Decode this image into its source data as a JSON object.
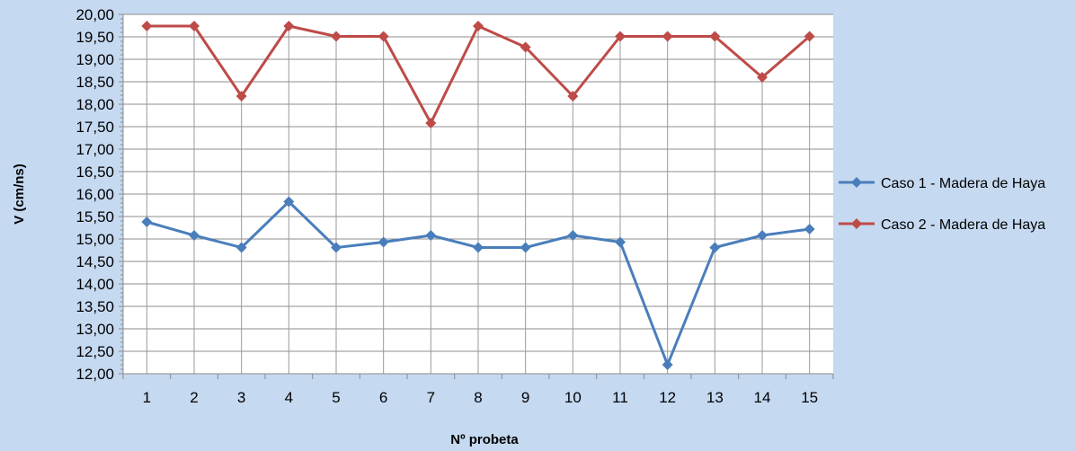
{
  "chart_data": {
    "type": "line",
    "xlabel": "Nº probeta",
    "ylabel": "V (cm/ns)",
    "categories": [
      "1",
      "2",
      "3",
      "4",
      "5",
      "6",
      "7",
      "8",
      "9",
      "10",
      "11",
      "12",
      "13",
      "14",
      "15"
    ],
    "ylim": [
      12.0,
      20.0
    ],
    "ystep": 0.5,
    "ytick_labels": [
      "12,00",
      "12,50",
      "13,00",
      "13,50",
      "14,00",
      "14,50",
      "15,00",
      "15,50",
      "16,00",
      "16,50",
      "17,00",
      "17,50",
      "18,00",
      "18,50",
      "19,00",
      "19,50",
      "20,00"
    ],
    "grid": "horizontal major gridlines; vertical drop lines at each category",
    "legend_position": "right",
    "series": [
      {
        "name": "Caso 1 - Madera de Haya",
        "color": "#4a7ebb",
        "marker": "diamond",
        "values": [
          15.38,
          15.08,
          14.81,
          15.83,
          14.81,
          14.93,
          15.08,
          14.81,
          14.81,
          15.08,
          14.93,
          12.2,
          14.81,
          15.08,
          15.22
        ]
      },
      {
        "name": "Caso 2 - Madera de Haya",
        "color": "#be4b48",
        "marker": "diamond",
        "values": [
          19.74,
          19.74,
          18.18,
          19.74,
          19.51,
          19.51,
          17.58,
          19.74,
          19.27,
          18.18,
          19.51,
          19.51,
          19.51,
          18.6,
          19.51
        ]
      }
    ]
  }
}
